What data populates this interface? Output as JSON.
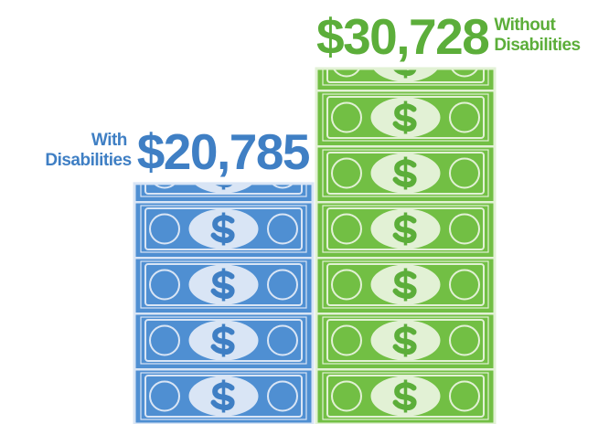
{
  "chart_data": {
    "type": "bar",
    "categories": [
      "With Disabilities",
      "Without Disabilities"
    ],
    "values": [
      20785,
      30728
    ],
    "value_labels": [
      "$20,785",
      "$30,728"
    ],
    "colors": [
      "#4f8fd2",
      "#72bf44"
    ]
  }
}
